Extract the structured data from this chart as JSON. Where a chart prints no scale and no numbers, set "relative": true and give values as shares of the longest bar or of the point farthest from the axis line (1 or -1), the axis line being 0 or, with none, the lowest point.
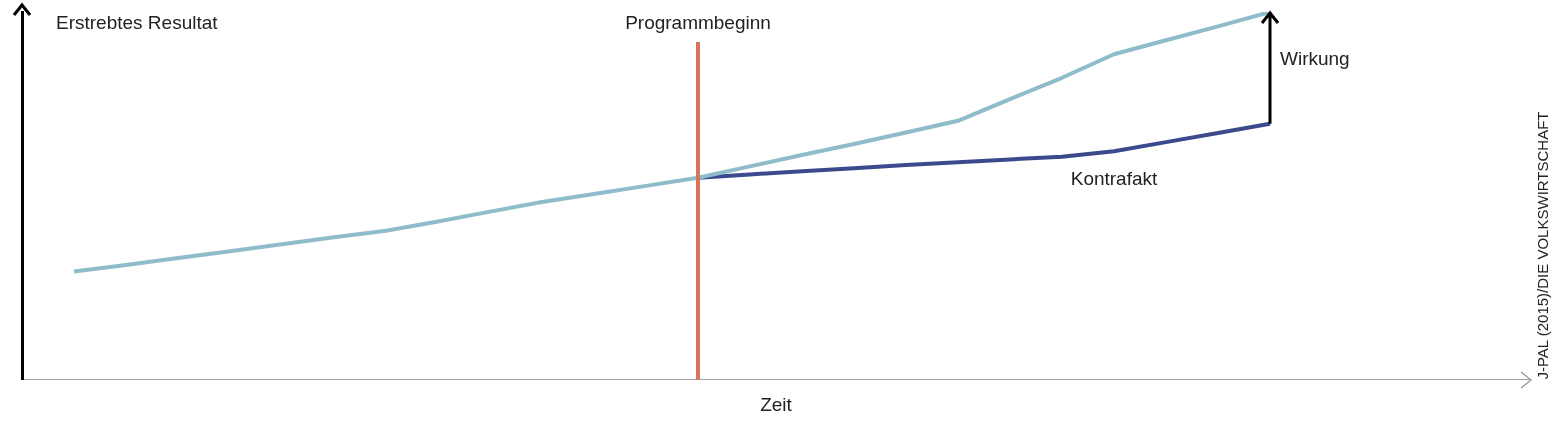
{
  "chart_data": {
    "type": "line",
    "relative": true,
    "ylabel": "Erstrebtes Resultat",
    "xlabel": "Zeit",
    "grid": false,
    "legend": false,
    "marker": "none",
    "line_style": "solid",
    "categories": [
      null,
      null,
      null,
      null,
      null,
      null,
      null,
      null,
      null,
      null,
      null,
      null,
      null,
      null,
      null,
      null,
      null,
      null,
      null,
      null,
      null,
      null,
      null,
      null,
      null,
      null,
      null,
      null,
      null,
      null
    ],
    "series": [
      {
        "color": "#8fbccb",
        "values": [
          null,
          0.294,
          0.312,
          0.331,
          0.349,
          0.368,
          0.387,
          0.405,
          0.43,
          0.457,
          0.483,
          0.505,
          0.527,
          0.549,
          0.58,
          0.611,
          0.641,
          0.672,
          0.704,
          0.763,
          0.821,
          0.885,
          0.923,
          0.961,
          1,
          null,
          null,
          null,
          null,
          null
        ]
      },
      {
        "name": "Kontrafakt",
        "color": "#3b4a8c",
        "values": [
          null,
          null,
          null,
          null,
          null,
          null,
          null,
          null,
          null,
          null,
          null,
          null,
          null,
          0.549,
          0.558,
          0.567,
          0.575,
          0.584,
          0.591,
          0.599,
          0.606,
          0.621,
          0.646,
          0.671,
          0.696,
          null,
          null,
          null,
          null,
          null
        ]
      }
    ],
    "annotations": [
      "Wirkung",
      "Programmbeginn",
      "J-PAL (2015)/DIE VOLKSWIRTSCHAFT"
    ]
  }
}
